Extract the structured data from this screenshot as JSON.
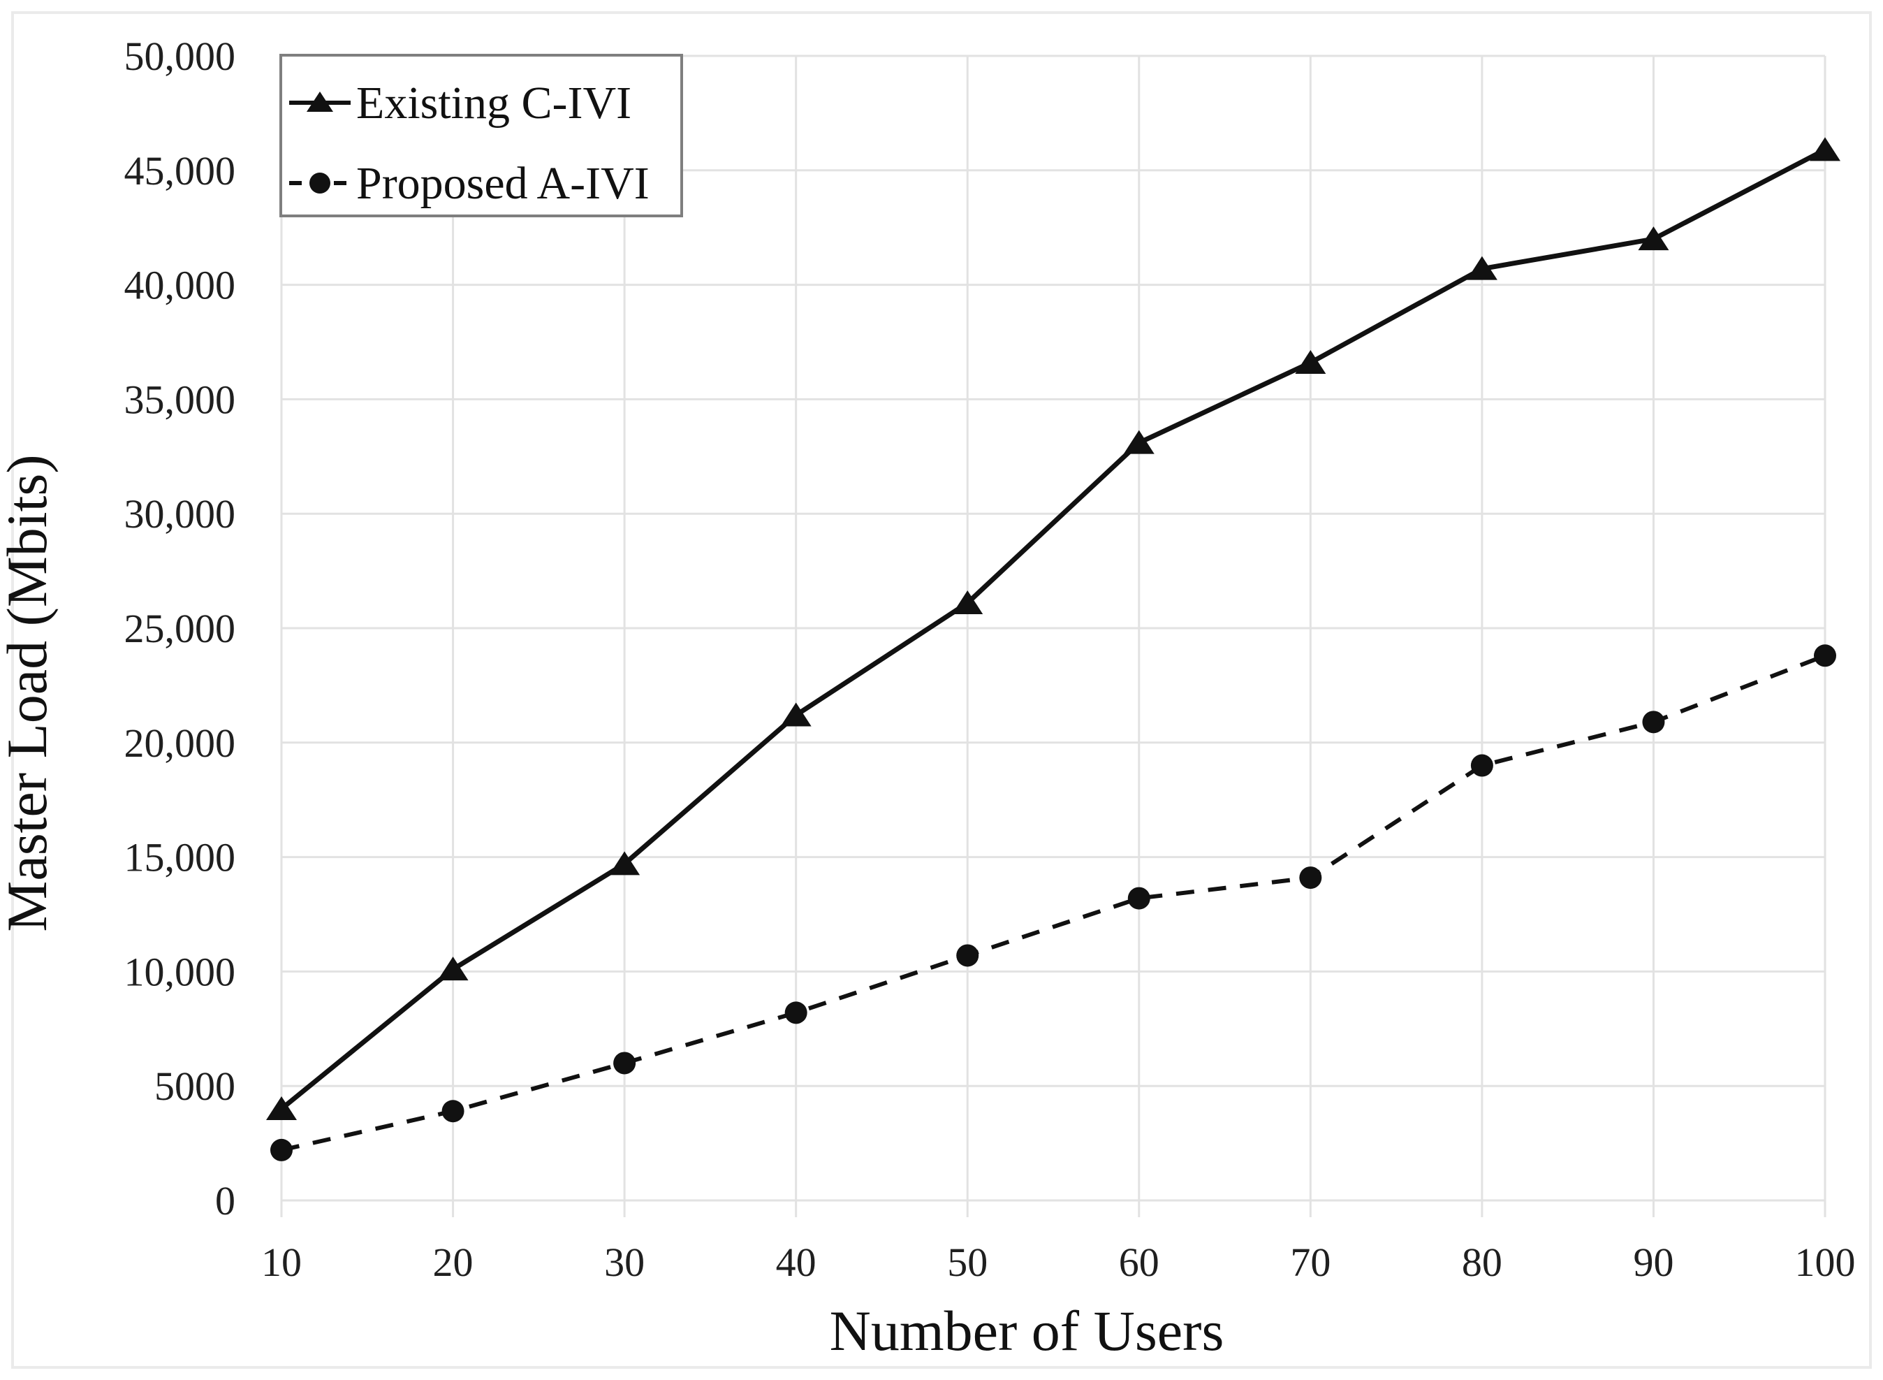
{
  "figure": {
    "background": "#ffffff",
    "border_color": "#ebebeb",
    "text_color": "#1f1f1f",
    "gridline_color": "#e2e2e2",
    "legend_border_color": "#7f7f7f"
  },
  "chart_data": {
    "type": "line",
    "title": "",
    "xlabel": "Number of Users",
    "ylabel": "Master Load (Mbits)",
    "x": [
      10,
      20,
      30,
      40,
      50,
      60,
      70,
      80,
      90,
      100
    ],
    "x_tick_labels": [
      "10",
      "20",
      "30",
      "40",
      "50",
      "60",
      "70",
      "80",
      "90",
      "100"
    ],
    "y_ticks": [
      0,
      5000,
      10000,
      15000,
      20000,
      25000,
      30000,
      35000,
      40000,
      45000,
      50000
    ],
    "y_tick_labels": [
      "0",
      "5000",
      "10,000",
      "15,000",
      "20,000",
      "25,000",
      "30,000",
      "35,000",
      "40,000",
      "45,000",
      "50,000"
    ],
    "xlim": [
      10,
      100
    ],
    "ylim": [
      0,
      50000
    ],
    "grid": true,
    "legend_position": "top-left",
    "series": [
      {
        "name": "Existing C-IVI",
        "marker": "triangle",
        "line_style": "solid",
        "color": "#111111",
        "values": [
          4000,
          10100,
          14700,
          21200,
          26100,
          33100,
          36600,
          40700,
          42000,
          45900
        ]
      },
      {
        "name": "Proposed A-IVI",
        "marker": "circle",
        "line_style": "dashed",
        "color": "#111111",
        "values": [
          2200,
          3900,
          6000,
          8200,
          10700,
          13200,
          14100,
          19000,
          20900,
          23800
        ]
      }
    ]
  }
}
